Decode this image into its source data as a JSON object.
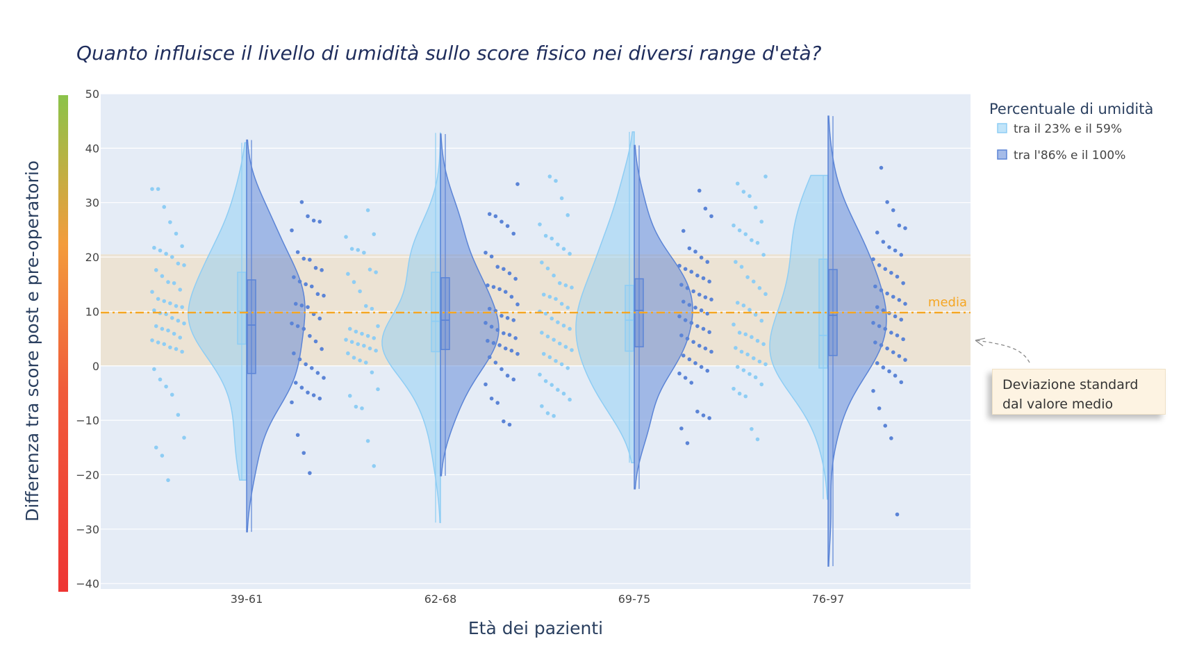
{
  "chart_data": {
    "type": "violin",
    "title": "Quanto influisce il livello di umidità sullo score fisico nei diversi range d'età?",
    "xlabel": "Età dei pazienti",
    "ylabel": "Differenza tra score post e pre-operatorio",
    "ylim": [
      -41,
      50
    ],
    "yticks": [
      50,
      40,
      30,
      20,
      10,
      0,
      -10,
      -20,
      -30,
      -40
    ],
    "ytick_labels": [
      "50",
      "40",
      "30",
      "20",
      "10",
      "0",
      "−10",
      "−20",
      "−30",
      "−40"
    ],
    "categories": [
      "39-61",
      "62-68",
      "69-75",
      "76-97"
    ],
    "legend": {
      "title": "Percentuale di umidità",
      "position": "top-right",
      "entries": [
        "tra il 23% e il 59%",
        "tra l'86% e il 100%"
      ]
    },
    "mean_line": {
      "value": 9.8,
      "label": "media",
      "color": "#f5a623"
    },
    "std_band": [
      0,
      20.5
    ],
    "annotation": "Deviazione standard dal valore medio",
    "annotation_lines": [
      "Deviazione standard",
      "dal valore medio"
    ],
    "colors": {
      "low": "#8ecdf4",
      "high": "#5b84d6",
      "band": "#ece3d4",
      "plot_bg": "#e5ecf6",
      "mean": "#f5a623"
    },
    "series": [
      {
        "name": "tra il 23% e il 59%",
        "groups": [
          {
            "category": "39-61",
            "min": -21,
            "max": 41,
            "mean": 10.2,
            "q1": 4,
            "median": 10,
            "q3": 17.2,
            "points": [
              32.5,
              32.5,
              29.2,
              26.4,
              24.3,
              22,
              21.7,
              21.2,
              20.6,
              20,
              18.8,
              18.5,
              17.6,
              16.5,
              15.4,
              15.2,
              14,
              13.6,
              12.3,
              11.9,
              11.5,
              11,
              10.8,
              10.2,
              9.7,
              9.5,
              8.8,
              8.3,
              7.8,
              7.3,
              6.8,
              6.5,
              5.9,
              5.2,
              4.7,
              4.3,
              4,
              3.4,
              3.1,
              2.6,
              -0.6,
              -2.5,
              -3.8,
              -5.3,
              -9,
              -13.2,
              -15,
              -16.5,
              -21
            ]
          },
          {
            "category": "62-68",
            "min": -28.8,
            "max": 42.8,
            "mean": 10,
            "q1": 2.6,
            "median": 8.2,
            "q3": 17.2,
            "points": [
              28.6,
              24.2,
              23.7,
              21.5,
              21.3,
              20.8,
              17.7,
              17.2,
              16.9,
              15.4,
              13.7,
              11,
              10.5,
              7.3,
              6.8,
              6.3,
              5.9,
              5.5,
              5.1,
              4.8,
              4.4,
              4,
              3.7,
              3.2,
              2.8,
              2.3,
              1.5,
              1,
              0.6,
              -1.2,
              -4.3,
              -5.5,
              -7.5,
              -7.8,
              -13.8,
              -18.4
            ]
          },
          {
            "category": "69-75",
            "min": -17.8,
            "max": 43,
            "mean": 9.7,
            "q1": 2.7,
            "median": 8.4,
            "q3": 14.8,
            "points": [
              34.8,
              34,
              30.8,
              27.7,
              26,
              23.9,
              23.4,
              22.3,
              21.5,
              20.6,
              19,
              17.9,
              16.6,
              15.2,
              14.8,
              14.4,
              13.1,
              12.7,
              12.3,
              11.4,
              10.7,
              10,
              9.6,
              8.7,
              8,
              7.4,
              6.8,
              6.1,
              5.4,
              4.8,
              4.1,
              3.5,
              2.9,
              2.2,
              1.6,
              0.9,
              0.3,
              -0.4,
              -1.6,
              -2.8,
              -3.5,
              -4.4,
              -5.1,
              -6.2,
              -7.4,
              -8.7,
              -9.2
            ]
          },
          {
            "category": "76-97",
            "min": -24.5,
            "max": 35,
            "mean": 9.7,
            "q1": -0.4,
            "median": 5.6,
            "q3": 19.6,
            "points": [
              34.8,
              33.5,
              32,
              31.2,
              29.1,
              26.5,
              25.8,
              24.9,
              24.2,
              23.1,
              22.6,
              20.4,
              19.1,
              18.2,
              16.3,
              15.5,
              14.3,
              13.2,
              11.6,
              11.1,
              10.3,
              9.4,
              8.3,
              7.6,
              6.1,
              5.8,
              5.3,
              4.6,
              4,
              3.3,
              2.6,
              2.1,
              1.4,
              0.8,
              0.3,
              -0.2,
              -0.8,
              -1.5,
              -2.1,
              -3.4,
              -4.2,
              -5.1,
              -5.6,
              -11.6,
              -13.5
            ]
          }
        ]
      },
      {
        "name": "tra l'86% e il 100%",
        "groups": [
          {
            "category": "39-61",
            "min": -30.5,
            "max": 41.5,
            "mean": 9.8,
            "q1": -1.4,
            "median": 7.5,
            "q3": 15.8,
            "points": [
              30.1,
              27.5,
              26.7,
              26.5,
              24.9,
              20.9,
              19.7,
              19.5,
              18,
              17.6,
              16.3,
              15.5,
              15,
              14.6,
              13.2,
              12.9,
              11.4,
              11.1,
              10.8,
              9.5,
              8.7,
              7.8,
              7.3,
              6.8,
              5.5,
              4.5,
              3.1,
              2.3,
              1.2,
              0.3,
              -0.4,
              -1.3,
              -2.2,
              -3.1,
              -4,
              -4.9,
              -5.4,
              -6,
              -6.7,
              -12.7,
              -16,
              -19.7
            ]
          },
          {
            "category": "62-68",
            "min": -20.2,
            "max": 42.6,
            "mean": 10.1,
            "q1": 3,
            "median": 8.4,
            "q3": 16.2,
            "points": [
              33.4,
              27.9,
              27.5,
              26.5,
              25.7,
              24.3,
              20.8,
              20.1,
              18.2,
              17.8,
              17,
              16,
              14.8,
              14.5,
              14.1,
              13.6,
              12.7,
              11.3,
              10.5,
              10.1,
              9.2,
              8.8,
              8.4,
              7.9,
              7.2,
              6.6,
              6,
              5.7,
              5.1,
              4.6,
              4.2,
              3.8,
              3.2,
              2.8,
              2.2,
              1.6,
              0.6,
              -0.6,
              -1.8,
              -2.5,
              -3.4,
              -6,
              -6.8,
              -10.2,
              -10.8
            ]
          },
          {
            "category": "69-75",
            "min": -22.6,
            "max": 40.5,
            "mean": 10.1,
            "q1": 3.5,
            "median": 10.2,
            "q3": 16,
            "points": [
              32.2,
              28.9,
              27.5,
              24.8,
              21.6,
              21,
              19.9,
              19.1,
              18.4,
              17.8,
              17.3,
              16.6,
              16.1,
              15.5,
              14.9,
              14.3,
              13.7,
              13.1,
              12.6,
              12.2,
              11.8,
              11.2,
              10.7,
              10.2,
              9.6,
              9.1,
              8.4,
              7.9,
              7.3,
              6.8,
              6.2,
              5.6,
              5,
              4.4,
              3.7,
              3.2,
              2.6,
              1.9,
              1.2,
              0.5,
              -0.2,
              -0.9,
              -1.4,
              -2.2,
              -3.1,
              -8.4,
              -9.1,
              -9.6,
              -11.5,
              -14.2
            ]
          },
          {
            "category": "76-97",
            "min": -36.8,
            "max": 45.9,
            "mean": 9.8,
            "q1": 1.9,
            "median": 9.3,
            "q3": 17.7,
            "points": [
              36.4,
              30.1,
              28.6,
              25.8,
              25.3,
              24.5,
              22.8,
              21.8,
              21.2,
              20.4,
              19.6,
              18.5,
              17.8,
              17.1,
              16.4,
              15.2,
              14.6,
              13.9,
              13.3,
              12.7,
              12.1,
              11.4,
              10.8,
              10.2,
              9.7,
              9.1,
              8.5,
              7.9,
              7.3,
              6.8,
              6.1,
              5.6,
              4.9,
              4.3,
              3.8,
              3.2,
              2.5,
              1.8,
              1.1,
              0.5,
              -0.3,
              -1,
              -1.8,
              -3,
              -4.6,
              -7.8,
              -11,
              -13.3,
              -27.3
            ]
          }
        ]
      }
    ]
  }
}
